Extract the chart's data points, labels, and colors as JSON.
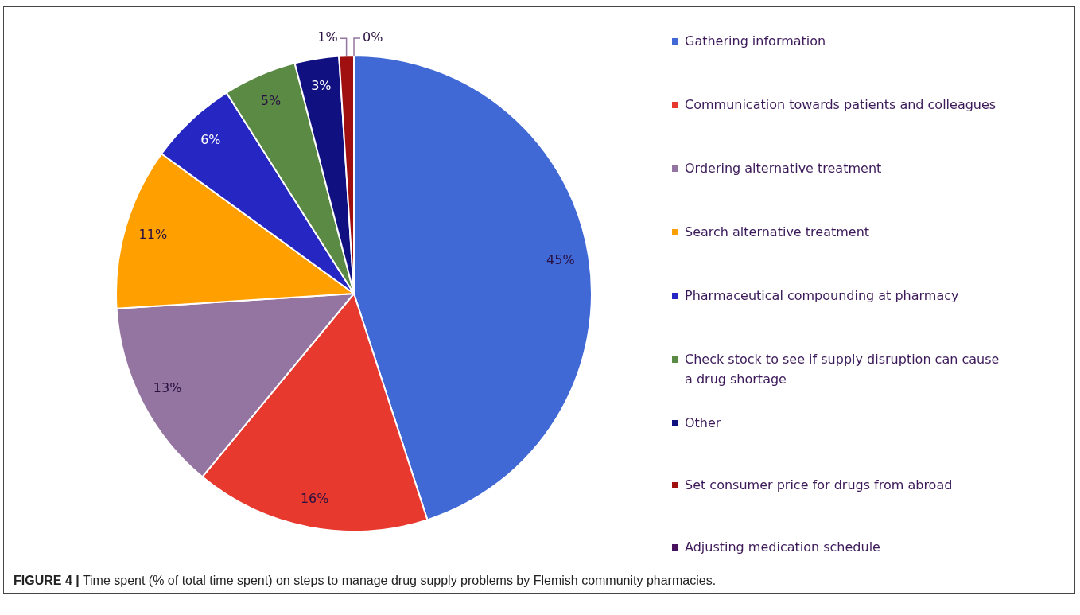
{
  "chart_data": {
    "type": "pie",
    "categories": [
      "Gathering information",
      "Communication towards patients and colleagues",
      "Ordering alternative treatment",
      "Search alternative treatment",
      "Pharmaceutical compounding at pharmacy",
      "Check stock to see if supply disruption can cause a drug shortage",
      "Other",
      "Set consumer price for drugs from abroad",
      "Adjusting medication schedule"
    ],
    "values": [
      45,
      16,
      13,
      11,
      6,
      5,
      3,
      1,
      0
    ],
    "colors": [
      "#4169d6",
      "#e8392e",
      "#9474a0",
      "#ffa000",
      "#2626c2",
      "#5b8a45",
      "#101080",
      "#a01010",
      "#4a1060"
    ],
    "value_labels": [
      "45%",
      "16%",
      "13%",
      "11%",
      "6%",
      "5%",
      "3%",
      "1%",
      "0%"
    ],
    "legend": "right",
    "annotations": [
      "FIGURE 4 | Time spent (% of total time spent) on steps to manage drug supply problems by Flemish community pharmacies."
    ]
  }
}
